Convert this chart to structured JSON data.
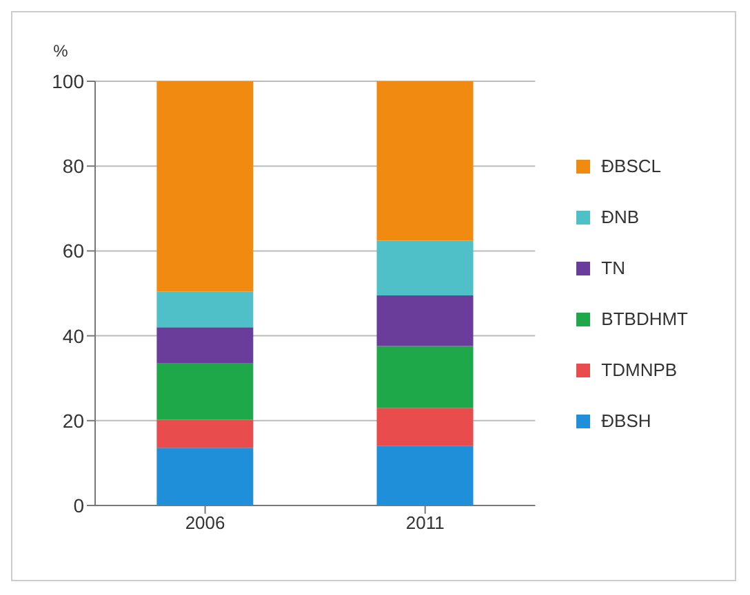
{
  "chart_data": {
    "type": "bar",
    "stacked": true,
    "ylabel": "%",
    "categories": [
      "2006",
      "2011"
    ],
    "series": [
      {
        "name": "ĐBSH",
        "color": "#1e8fd8",
        "values": [
          13.6,
          14.1
        ]
      },
      {
        "name": "TDMNPB",
        "color": "#e84c4c",
        "values": [
          6.6,
          8.9
        ]
      },
      {
        "name": "BTBDHMT",
        "color": "#1fa84a",
        "values": [
          13.3,
          14.6
        ]
      },
      {
        "name": "TN",
        "color": "#6a3d9a",
        "values": [
          8.5,
          11.9
        ]
      },
      {
        "name": "ĐNB",
        "color": "#4fc0c8",
        "values": [
          8.4,
          12.9
        ]
      },
      {
        "name": "ĐBSCL",
        "color": "#f08a10",
        "values": [
          49.6,
          37.6
        ]
      }
    ],
    "ylim": [
      0,
      100
    ],
    "yticks": [
      0,
      20,
      40,
      60,
      80,
      100
    ],
    "grid": "y",
    "legend": "right"
  }
}
